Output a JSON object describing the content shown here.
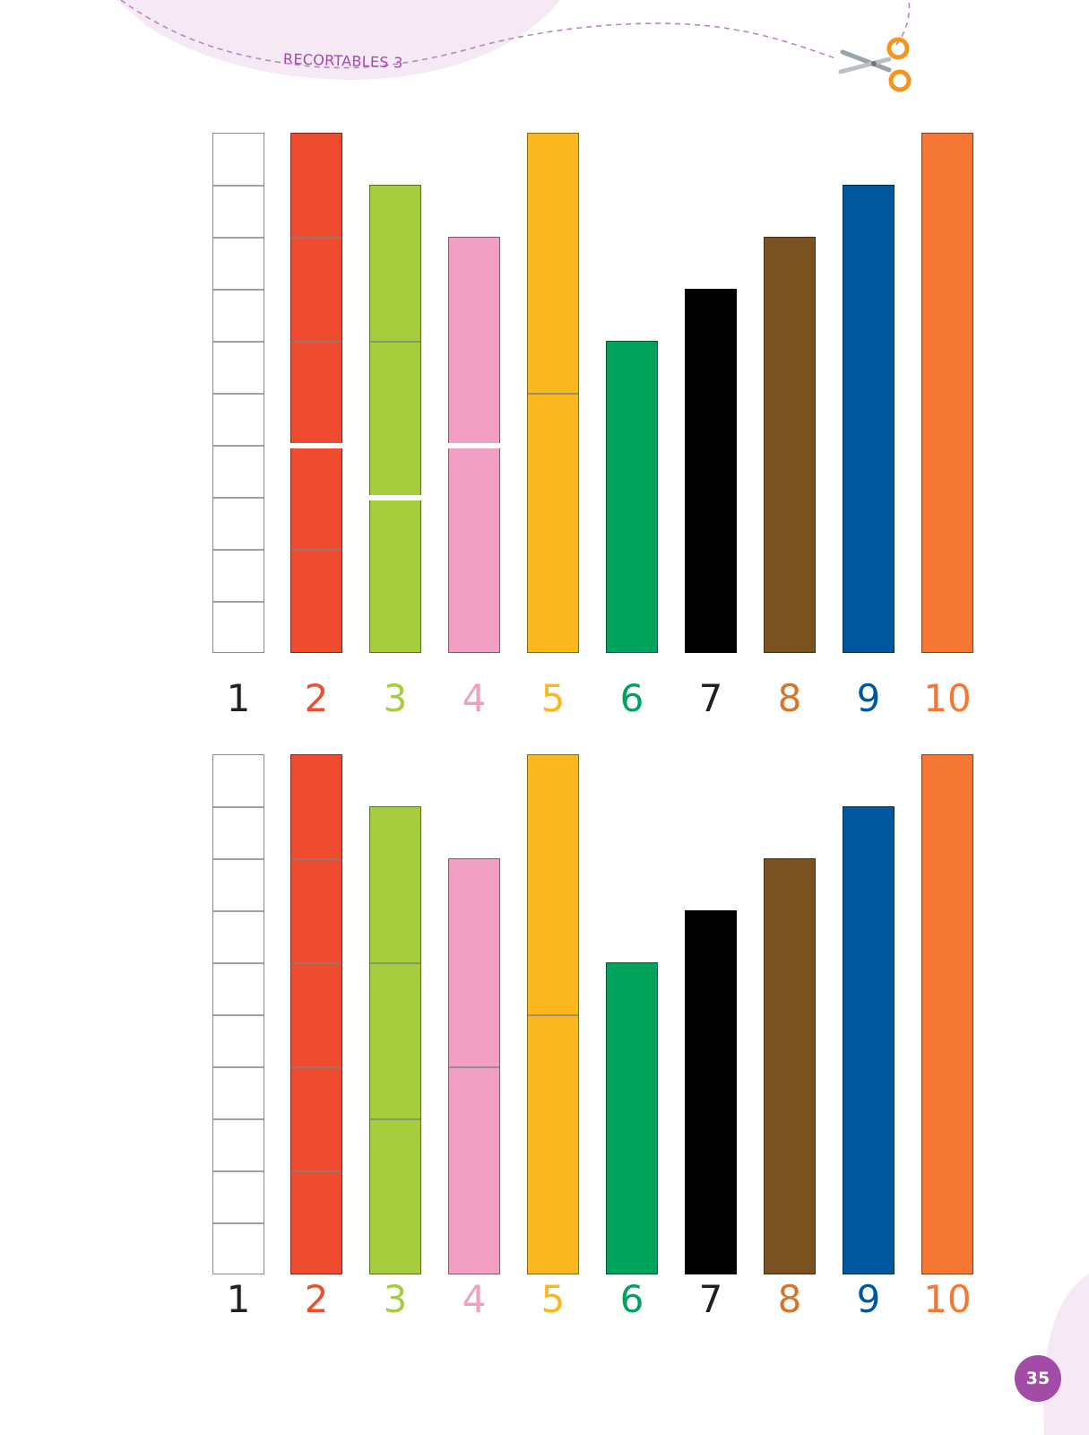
{
  "header": {
    "label": "RECORTABLES 3"
  },
  "page_number": "35",
  "colors": {
    "1": "#ffffff",
    "2": "#ef4b2f",
    "3": "#a6cd3d",
    "4": "#f29fc4",
    "5": "#fbb81e",
    "6": "#00a35b",
    "7": "#000000",
    "8": "#7a5120",
    "9": "#00579e",
    "10": "#f47733"
  },
  "label_colors": {
    "1": "#231f20",
    "2": "#e8502f",
    "3": "#a6cd3d",
    "4": "#f29fc4",
    "5": "#fbb81e",
    "6": "#00a35b",
    "7": "#231f20",
    "8": "#d6762a",
    "9": "#00579e",
    "10": "#f47733"
  },
  "rod_sets": [
    {
      "rods": [
        {
          "value": 1,
          "label": "1",
          "count": 10,
          "pieces": [
            3,
            3,
            3,
            1
          ],
          "split": []
        },
        {
          "value": 2,
          "label": "2",
          "count": 5,
          "pieces": [
            3,
            2
          ],
          "split": [
            6
          ]
        },
        {
          "value": 3,
          "label": "3",
          "count": 3,
          "pieces": [
            2,
            1
          ],
          "split": [
            6
          ]
        },
        {
          "value": 4,
          "label": "4",
          "count": 2,
          "pieces": [
            1,
            1
          ],
          "split": [
            4
          ]
        },
        {
          "value": 5,
          "label": "5",
          "count": 2,
          "pieces": [
            1,
            1
          ],
          "split": []
        },
        {
          "value": 6,
          "label": "6",
          "count": 1,
          "pieces": [
            1
          ],
          "split": []
        },
        {
          "value": 7,
          "label": "7",
          "count": 1,
          "pieces": [
            1
          ],
          "split": []
        },
        {
          "value": 8,
          "label": "8",
          "count": 1,
          "pieces": [
            1
          ],
          "split": []
        },
        {
          "value": 9,
          "label": "9",
          "count": 1,
          "pieces": [
            1
          ],
          "split": []
        },
        {
          "value": 10,
          "label": "10",
          "count": 1,
          "pieces": [
            1
          ],
          "split": []
        }
      ]
    },
    {
      "rods": [
        {
          "value": 1,
          "label": "1",
          "count": 10,
          "pieces": [
            10
          ],
          "split": []
        },
        {
          "value": 2,
          "label": "2",
          "count": 5,
          "pieces": [
            5
          ],
          "split": []
        },
        {
          "value": 3,
          "label": "3",
          "count": 3,
          "pieces": [
            3
          ],
          "split": []
        },
        {
          "value": 4,
          "label": "4",
          "count": 2,
          "pieces": [
            2
          ],
          "split": []
        },
        {
          "value": 5,
          "label": "5",
          "count": 2,
          "pieces": [
            2
          ],
          "split": []
        },
        {
          "value": 6,
          "label": "6",
          "count": 1,
          "pieces": [
            1
          ],
          "split": []
        },
        {
          "value": 7,
          "label": "7",
          "count": 1,
          "pieces": [
            1
          ],
          "split": []
        },
        {
          "value": 8,
          "label": "8",
          "count": 1,
          "pieces": [
            1
          ],
          "split": []
        },
        {
          "value": 9,
          "label": "9",
          "count": 1,
          "pieces": [
            1
          ],
          "split": []
        },
        {
          "value": 10,
          "label": "10",
          "count": 1,
          "pieces": [
            1
          ],
          "split": []
        }
      ]
    }
  ]
}
